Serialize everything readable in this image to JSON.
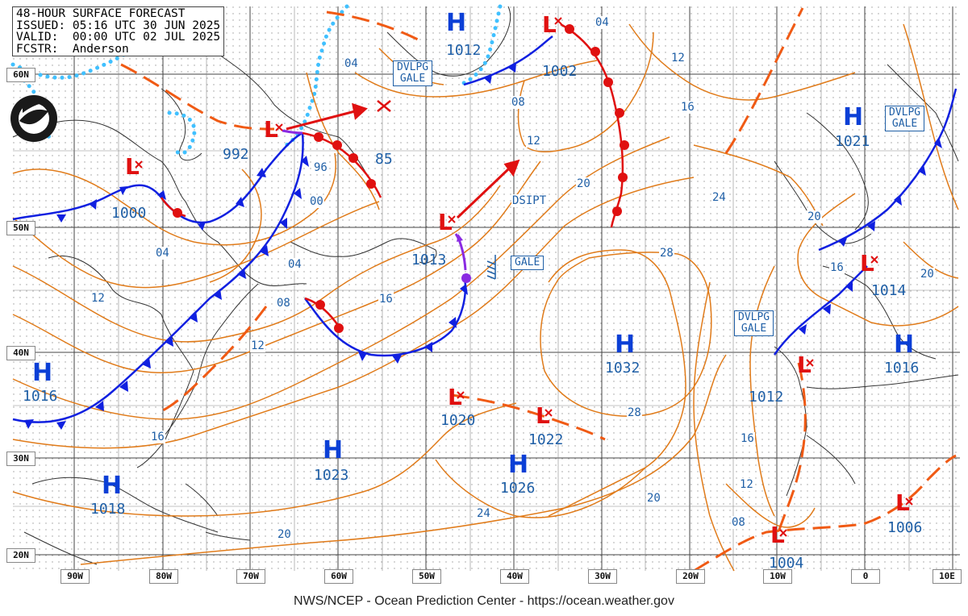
{
  "header": {
    "title": "48-HOUR SURFACE FORECAST",
    "issued": "ISSUED: 05:16 UTC 30 JUN 2025",
    "valid": "VALID:  00:00 UTC 02 JUL 2025",
    "forecaster": "FCSTR:  Anderson"
  },
  "logo": {
    "icon": "noaa-logo-icon"
  },
  "footer": "NWS/NCEP - Ocean Prediction Center - https://ocean.weather.gov",
  "latitude_labels": [
    "60N",
    "50N",
    "40N",
    "30N",
    "20N"
  ],
  "longitude_labels": [
    "90W",
    "80W",
    "70W",
    "60W",
    "50W",
    "40W",
    "30W",
    "20W",
    "10W",
    "0",
    "10E"
  ],
  "warning_labels": {
    "gale_nw": "DVLPG\nGALE",
    "gale_ne": "DVLPG\nGALE",
    "gale_iberia": "DVLPG\nGALE",
    "gale_mid": "GALE",
    "dissipating": "DSIPT"
  },
  "pressure_centers": [
    {
      "type": "H",
      "value": "1012"
    },
    {
      "type": "L",
      "value": "1002"
    },
    {
      "type": "L",
      "value": "992"
    },
    {
      "type": "L",
      "value": "85"
    },
    {
      "type": "L",
      "value": "1000"
    },
    {
      "type": "L",
      "value": "1013"
    },
    {
      "type": "H",
      "value": "1021"
    },
    {
      "type": "L",
      "value": "1014"
    },
    {
      "type": "H",
      "value": "1016"
    },
    {
      "type": "H",
      "value": "1032"
    },
    {
      "type": "L",
      "value": "1012"
    },
    {
      "type": "H",
      "value": "1016"
    },
    {
      "type": "L",
      "value": "1020"
    },
    {
      "type": "L",
      "value": "1022"
    },
    {
      "type": "H",
      "value": "1023"
    },
    {
      "type": "H",
      "value": "1026"
    },
    {
      "type": "H",
      "value": "1018"
    },
    {
      "type": "L",
      "value": "1006"
    },
    {
      "type": "L",
      "value": "1004"
    }
  ],
  "isobar_labels": [
    "04",
    "08",
    "12",
    "16",
    "20",
    "24",
    "28",
    "96",
    "00",
    "04",
    "08",
    "12",
    "16",
    "20",
    "24",
    "28",
    "04",
    "12",
    "16",
    "20",
    "16",
    "12",
    "08",
    "20",
    "04",
    "12",
    "16",
    "20",
    "28",
    "16",
    "24"
  ],
  "colors": {
    "isobar": "#e07b1a",
    "text_blue": "#1f5fa6",
    "high": "#0b3fd6",
    "low": "#e01010",
    "cold_front": "#1020e0",
    "warm_front": "#e01010",
    "occluded_front": "#8a2be2",
    "trough": "#f05a14",
    "ice_edge": "#40c0ff",
    "grid": "#555555"
  }
}
